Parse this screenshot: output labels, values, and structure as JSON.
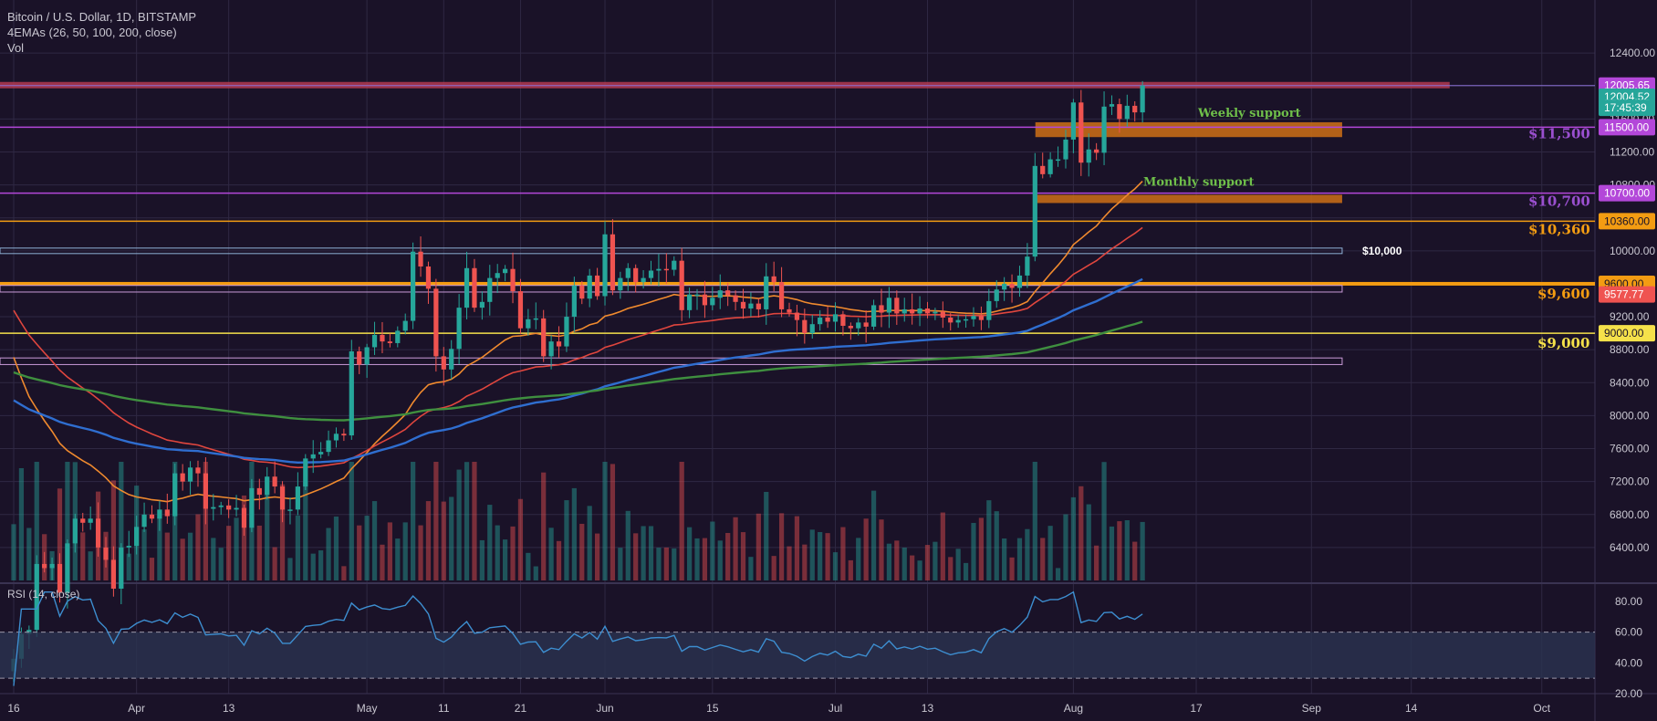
{
  "header": {
    "symbol_line": "Bitcoin / U.S. Dollar, 1D, BITSTAMP",
    "indicator_line": "4EMAs (26, 50, 100, 200, close)",
    "volume_line": "Vol"
  },
  "rsi_panel": {
    "label": "RSI (14, close)"
  },
  "colors": {
    "background": "#1a1228",
    "grid": "#2f2843",
    "up": "#26a69a",
    "down": "#ef5350",
    "ema26": "#f08a2e",
    "ema50": "#e0463e",
    "ema100": "#2f6ed0",
    "ema200": "#3f8f3f",
    "rsi": "#3d8ed0",
    "resistance": "#b33a50",
    "support_purple": "#b347d9",
    "level_orange": "#f39c12",
    "level_yellow": "#f5e14a"
  },
  "price_tags": [
    {
      "value": 12005.65,
      "label": "12005.65",
      "bg": "#b347d9",
      "fg": "#ffffff"
    },
    {
      "value": 11870,
      "label": "12004.52",
      "bg": "#26a69a",
      "fg": "#ffffff"
    },
    {
      "value": 11735,
      "label": "17:45:39",
      "bg": "#26a69a",
      "fg": "#ffffff"
    },
    {
      "value": 11500,
      "label": "11500.00",
      "bg": "#b347d9",
      "fg": "#ffffff"
    },
    {
      "value": 10700,
      "label": "10700.00",
      "bg": "#b347d9",
      "fg": "#ffffff"
    },
    {
      "value": 10360,
      "label": "10360.00",
      "bg": "#f39c12",
      "fg": "#1a1228"
    },
    {
      "value": 9600,
      "label": "9600.00",
      "bg": "#f39c12",
      "fg": "#1a1228"
    },
    {
      "value": 9470,
      "label": "9577.77",
      "bg": "#ef5350",
      "fg": "#ffffff"
    },
    {
      "value": 9000,
      "label": "9000.00",
      "bg": "#f5e14a",
      "fg": "#1a1228"
    }
  ],
  "annotations": {
    "weekly_support": "Weekly support",
    "monthly_support": "Monthly support",
    "lvl_11500": "$11,500",
    "lvl_10700": "$10,700",
    "lvl_10360": "$10,360",
    "lvl_10000": "$10,000",
    "lvl_9600": "$9,600",
    "lvl_9000": "$9,000"
  },
  "chart_data": {
    "type": "candlestick",
    "title": "Bitcoin / U.S. Dollar, 1D, BITSTAMP",
    "y_axis": {
      "range": [
        6000,
        12800
      ],
      "ticks": [
        6400,
        6800,
        7200,
        7600,
        8000,
        8400,
        8800,
        9200,
        9600,
        10000,
        10400,
        10800,
        11200,
        11600,
        12000,
        12400
      ],
      "tick_labels": [
        "6400.00",
        "6800.00",
        "7200.00",
        "7600.00",
        "8000.00",
        "8400.00",
        "8800.00",
        "9200.00",
        "9600.00",
        "10000.00",
        "10400.00",
        "10800.00",
        "11200.00",
        "11600.00",
        "12000.00",
        "12400.00"
      ]
    },
    "x_axis": {
      "start_date": "2020-03-16",
      "end_date": "2020-10-04",
      "tick_labels": [
        {
          "date": "2020-03-16",
          "label": "16"
        },
        {
          "date": "2020-04-01",
          "label": "Apr"
        },
        {
          "date": "2020-04-13",
          "label": "13"
        },
        {
          "date": "2020-05-01",
          "label": "May"
        },
        {
          "date": "2020-05-11",
          "label": "11"
        },
        {
          "date": "2020-05-21",
          "label": "21"
        },
        {
          "date": "2020-06-01",
          "label": "Jun"
        },
        {
          "date": "2020-06-15",
          "label": "15"
        },
        {
          "date": "2020-07-01",
          "label": "Jul"
        },
        {
          "date": "2020-07-13",
          "label": "13"
        },
        {
          "date": "2020-08-01",
          "label": "Aug"
        },
        {
          "date": "2020-08-17",
          "label": "17"
        },
        {
          "date": "2020-09-01",
          "label": "Sep"
        },
        {
          "date": "2020-09-14",
          "label": "14"
        },
        {
          "date": "2020-10-01",
          "label": "Oct"
        }
      ]
    },
    "close_series": [
      {
        "date": "2020-03-16",
        "close": 5050
      },
      {
        "date": "2020-03-17",
        "close": 5350
      },
      {
        "date": "2020-03-18",
        "close": 5400
      },
      {
        "date": "2020-03-19",
        "close": 6200
      },
      {
        "date": "2020-03-20",
        "close": 6150
      },
      {
        "date": "2020-03-21",
        "close": 6200
      },
      {
        "date": "2020-03-22",
        "close": 5850
      },
      {
        "date": "2020-03-23",
        "close": 6450
      },
      {
        "date": "2020-03-24",
        "close": 6750
      },
      {
        "date": "2020-03-25",
        "close": 6700
      },
      {
        "date": "2020-03-26",
        "close": 6750
      },
      {
        "date": "2020-03-27",
        "close": 6400
      },
      {
        "date": "2020-03-28",
        "close": 6250
      },
      {
        "date": "2020-03-29",
        "close": 5900
      },
      {
        "date": "2020-03-30",
        "close": 6400
      },
      {
        "date": "2020-03-31",
        "close": 6420
      },
      {
        "date": "2020-04-01",
        "close": 6650
      },
      {
        "date": "2020-04-02",
        "close": 6800
      },
      {
        "date": "2020-04-03",
        "close": 6750
      },
      {
        "date": "2020-04-04",
        "close": 6860
      },
      {
        "date": "2020-04-05",
        "close": 6780
      },
      {
        "date": "2020-04-06",
        "close": 7300
      },
      {
        "date": "2020-04-07",
        "close": 7200
      },
      {
        "date": "2020-04-08",
        "close": 7370
      },
      {
        "date": "2020-04-09",
        "close": 7300
      },
      {
        "date": "2020-04-10",
        "close": 6870
      },
      {
        "date": "2020-04-11",
        "close": 6890
      },
      {
        "date": "2020-04-12",
        "close": 6910
      },
      {
        "date": "2020-04-13",
        "close": 6860
      },
      {
        "date": "2020-04-14",
        "close": 6880
      },
      {
        "date": "2020-04-15",
        "close": 6640
      },
      {
        "date": "2020-04-16",
        "close": 7120
      },
      {
        "date": "2020-04-17",
        "close": 7040
      },
      {
        "date": "2020-04-18",
        "close": 7260
      },
      {
        "date": "2020-04-19",
        "close": 7140
      },
      {
        "date": "2020-04-20",
        "close": 6860
      },
      {
        "date": "2020-04-21",
        "close": 6860
      },
      {
        "date": "2020-04-22",
        "close": 7140
      },
      {
        "date": "2020-04-23",
        "close": 7480
      },
      {
        "date": "2020-04-24",
        "close": 7530
      },
      {
        "date": "2020-04-25",
        "close": 7560
      },
      {
        "date": "2020-04-26",
        "close": 7700
      },
      {
        "date": "2020-04-27",
        "close": 7780
      },
      {
        "date": "2020-04-28",
        "close": 7760
      },
      {
        "date": "2020-04-29",
        "close": 8780
      },
      {
        "date": "2020-04-30",
        "close": 8620
      },
      {
        "date": "2020-05-01",
        "close": 8830
      },
      {
        "date": "2020-05-02",
        "close": 8980
      },
      {
        "date": "2020-05-03",
        "close": 8900
      },
      {
        "date": "2020-05-04",
        "close": 8880
      },
      {
        "date": "2020-05-05",
        "close": 9030
      },
      {
        "date": "2020-05-06",
        "close": 9150
      },
      {
        "date": "2020-05-07",
        "close": 9990
      },
      {
        "date": "2020-05-08",
        "close": 9810
      },
      {
        "date": "2020-05-09",
        "close": 9540
      },
      {
        "date": "2020-05-10",
        "close": 8720
      },
      {
        "date": "2020-05-11",
        "close": 8560
      },
      {
        "date": "2020-05-12",
        "close": 8810
      },
      {
        "date": "2020-05-13",
        "close": 9310
      },
      {
        "date": "2020-05-14",
        "close": 9790
      },
      {
        "date": "2020-05-15",
        "close": 9310
      },
      {
        "date": "2020-05-16",
        "close": 9380
      },
      {
        "date": "2020-05-17",
        "close": 9670
      },
      {
        "date": "2020-05-18",
        "close": 9730
      },
      {
        "date": "2020-05-19",
        "close": 9780
      },
      {
        "date": "2020-05-20",
        "close": 9510
      },
      {
        "date": "2020-05-21",
        "close": 9060
      },
      {
        "date": "2020-05-22",
        "close": 9170
      },
      {
        "date": "2020-05-23",
        "close": 9180
      },
      {
        "date": "2020-05-24",
        "close": 8720
      },
      {
        "date": "2020-05-25",
        "close": 8900
      },
      {
        "date": "2020-05-26",
        "close": 8840
      },
      {
        "date": "2020-05-27",
        "close": 9200
      },
      {
        "date": "2020-05-28",
        "close": 9580
      },
      {
        "date": "2020-05-29",
        "close": 9420
      },
      {
        "date": "2020-05-30",
        "close": 9700
      },
      {
        "date": "2020-05-31",
        "close": 9450
      },
      {
        "date": "2020-06-01",
        "close": 10200
      },
      {
        "date": "2020-06-02",
        "close": 9520
      },
      {
        "date": "2020-06-03",
        "close": 9670
      },
      {
        "date": "2020-06-04",
        "close": 9790
      },
      {
        "date": "2020-06-05",
        "close": 9620
      },
      {
        "date": "2020-06-06",
        "close": 9670
      },
      {
        "date": "2020-06-07",
        "close": 9760
      },
      {
        "date": "2020-06-08",
        "close": 9780
      },
      {
        "date": "2020-06-09",
        "close": 9770
      },
      {
        "date": "2020-06-10",
        "close": 9880
      },
      {
        "date": "2020-06-11",
        "close": 9280
      },
      {
        "date": "2020-06-12",
        "close": 9470
      },
      {
        "date": "2020-06-13",
        "close": 9470
      },
      {
        "date": "2020-06-14",
        "close": 9340
      },
      {
        "date": "2020-06-15",
        "close": 9430
      },
      {
        "date": "2020-06-16",
        "close": 9520
      },
      {
        "date": "2020-06-17",
        "close": 9460
      },
      {
        "date": "2020-06-18",
        "close": 9380
      },
      {
        "date": "2020-06-19",
        "close": 9300
      },
      {
        "date": "2020-06-20",
        "close": 9360
      },
      {
        "date": "2020-06-21",
        "close": 9290
      },
      {
        "date": "2020-06-22",
        "close": 9690
      },
      {
        "date": "2020-06-23",
        "close": 9620
      },
      {
        "date": "2020-06-24",
        "close": 9290
      },
      {
        "date": "2020-06-25",
        "close": 9250
      },
      {
        "date": "2020-06-26",
        "close": 9160
      },
      {
        "date": "2020-06-27",
        "close": 9000
      },
      {
        "date": "2020-06-28",
        "close": 9110
      },
      {
        "date": "2020-06-29",
        "close": 9190
      },
      {
        "date": "2020-06-30",
        "close": 9140
      },
      {
        "date": "2020-07-01",
        "close": 9230
      },
      {
        "date": "2020-07-02",
        "close": 9090
      },
      {
        "date": "2020-07-03",
        "close": 9060
      },
      {
        "date": "2020-07-04",
        "close": 9130
      },
      {
        "date": "2020-07-05",
        "close": 9080
      },
      {
        "date": "2020-07-06",
        "close": 9340
      },
      {
        "date": "2020-07-07",
        "close": 9250
      },
      {
        "date": "2020-07-08",
        "close": 9430
      },
      {
        "date": "2020-07-09",
        "close": 9240
      },
      {
        "date": "2020-07-10",
        "close": 9290
      },
      {
        "date": "2020-07-11",
        "close": 9240
      },
      {
        "date": "2020-07-12",
        "close": 9300
      },
      {
        "date": "2020-07-13",
        "close": 9240
      },
      {
        "date": "2020-07-14",
        "close": 9260
      },
      {
        "date": "2020-07-15",
        "close": 9190
      },
      {
        "date": "2020-07-16",
        "close": 9130
      },
      {
        "date": "2020-07-17",
        "close": 9160
      },
      {
        "date": "2020-07-18",
        "close": 9170
      },
      {
        "date": "2020-07-19",
        "close": 9210
      },
      {
        "date": "2020-07-20",
        "close": 9160
      },
      {
        "date": "2020-07-21",
        "close": 9390
      },
      {
        "date": "2020-07-22",
        "close": 9530
      },
      {
        "date": "2020-07-23",
        "close": 9600
      },
      {
        "date": "2020-07-24",
        "close": 9550
      },
      {
        "date": "2020-07-25",
        "close": 9700
      },
      {
        "date": "2020-07-26",
        "close": 9930
      },
      {
        "date": "2020-07-27",
        "close": 11030
      },
      {
        "date": "2020-07-28",
        "close": 10930
      },
      {
        "date": "2020-07-29",
        "close": 11110
      },
      {
        "date": "2020-07-30",
        "close": 11110
      },
      {
        "date": "2020-07-31",
        "close": 11350
      },
      {
        "date": "2020-08-01",
        "close": 11800
      },
      {
        "date": "2020-08-02",
        "close": 11070
      },
      {
        "date": "2020-08-03",
        "close": 11230
      },
      {
        "date": "2020-08-04",
        "close": 11190
      },
      {
        "date": "2020-08-05",
        "close": 11750
      },
      {
        "date": "2020-08-06",
        "close": 11780
      },
      {
        "date": "2020-08-07",
        "close": 11600
      },
      {
        "date": "2020-08-08",
        "close": 11760
      },
      {
        "date": "2020-08-09",
        "close": 11680
      },
      {
        "date": "2020-08-10",
        "close": 12005
      }
    ],
    "emas": [
      {
        "name": "EMA 26",
        "period": 26
      },
      {
        "name": "EMA 50",
        "period": 50
      },
      {
        "name": "EMA 100",
        "period": 100
      },
      {
        "name": "EMA 200",
        "period": 200
      }
    ],
    "horizontal_levels": [
      {
        "name": "Resistance zone",
        "value": 12005
      },
      {
        "name": "$11,500",
        "value": 11500
      },
      {
        "name": "$10,700",
        "value": 10700
      },
      {
        "name": "$10,360",
        "value": 10360
      },
      {
        "name": "$10,000",
        "value": 10000
      },
      {
        "name": "$9,600",
        "value": 9600
      },
      {
        "name": "$9,000",
        "value": 9000
      }
    ],
    "zones": [
      {
        "name": "Weekly support",
        "from": 11380,
        "to": 11560
      },
      {
        "name": "Monthly support",
        "from": 10580,
        "to": 10680
      }
    ],
    "rsi": {
      "label": "RSI (14, close)",
      "range": [
        20,
        90
      ],
      "ticks": [
        20,
        40,
        60,
        80
      ],
      "tick_labels": [
        "20.00",
        "40.00",
        "60.00",
        "80.00"
      ],
      "upper_band": 60,
      "lower_band": 30
    }
  }
}
